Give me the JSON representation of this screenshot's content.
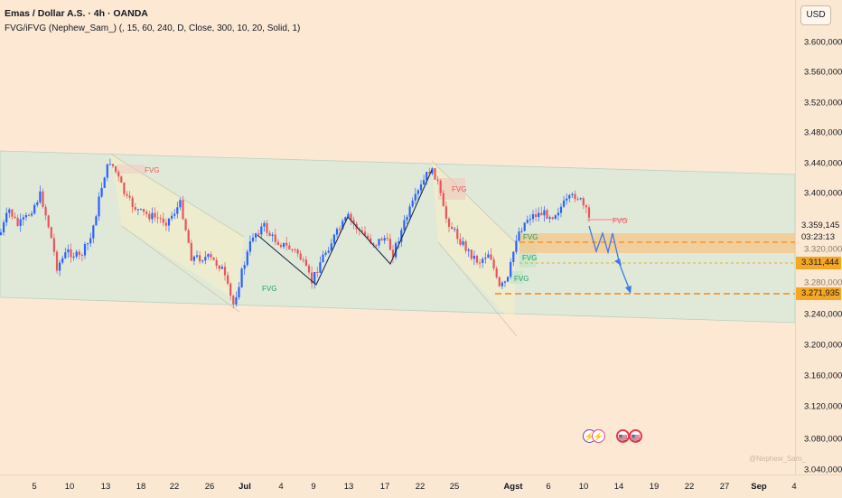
{
  "header": {
    "title": "Emas / Dollar A.S. · 4h · OANDA",
    "indicator": "FVG/iFVG (Nephew_Sam_) (, 15, 60, 240, D, Close, 300, 10, 20, Solid, 1)"
  },
  "currency_button": "USD",
  "price_axis": {
    "ticks": [
      "3.600,000",
      "3.560,000",
      "3.520,000",
      "3.480,000",
      "3.440,000",
      "3.400,000",
      "3.240,000",
      "3.200,000",
      "3.160,000",
      "3.120,000",
      "3.080,000",
      "3.040,000"
    ],
    "current_price": "3.359,145",
    "countdown": "03:23:13",
    "level_1": "3.311,444",
    "level_2": "3.271,935",
    "hidden_1": "3.320,000",
    "hidden_2": "3.280,000"
  },
  "time_axis": {
    "ticks": [
      "5",
      "10",
      "13",
      "18",
      "22",
      "26",
      "Jul",
      "4",
      "9",
      "13",
      "17",
      "22",
      "25",
      "Agst",
      "6",
      "10",
      "14",
      "19",
      "22",
      "27",
      "Sep",
      "4"
    ]
  },
  "fvg_labels": [
    "FVG",
    "FVG",
    "FVG",
    "FVG",
    "FVG",
    "FVG",
    "FVG"
  ],
  "event_icons": [
    "⚡",
    "⚡",
    "🇺🇸",
    "🇺🇸"
  ],
  "watermark": "@Nephew_Sam_",
  "colors": {
    "up": "#2962ff",
    "down": "#e8555b",
    "channel": "#d9ebdf",
    "zone": "#f5c58a",
    "dash": "#f5a623"
  }
}
